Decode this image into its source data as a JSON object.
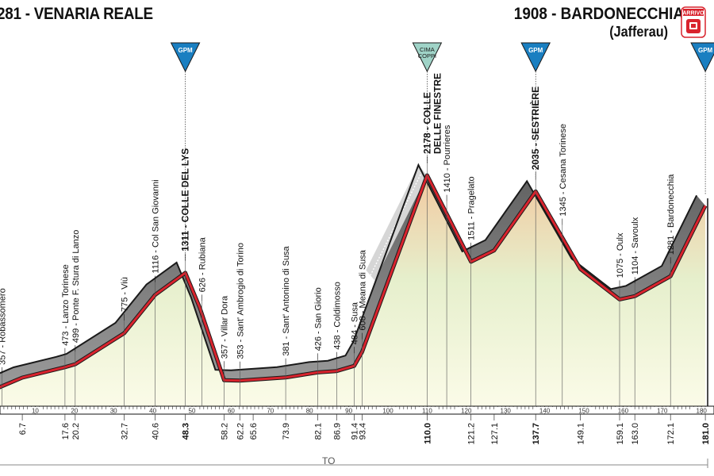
{
  "header": {
    "start_title": "281 - VENARIA REALE",
    "finish_title": "1908 - BARDONECCHIA",
    "finish_subtitle": "(Jafferau)",
    "finish_badge": "ARRIVO"
  },
  "province_label": "TO",
  "chart_data": {
    "type": "area",
    "title": "",
    "xlabel": "",
    "ylabel": "",
    "xlim": [
      0,
      181
    ],
    "ylim": [
      0,
      2400
    ],
    "x_ticks": [
      10,
      20,
      30,
      40,
      50,
      60,
      70,
      80,
      90,
      100,
      110,
      120,
      130,
      140,
      150,
      160,
      170,
      180
    ],
    "colors": {
      "road": "#d9232d",
      "shadow": "#808080",
      "outline": "#1a1a1a",
      "gpm": "#1a7fc1",
      "cima_coppi": "#9fd3c7"
    },
    "profile": [
      {
        "x": 0,
        "y": 281
      },
      {
        "x": 6.7,
        "y": 380
      },
      {
        "x": 17.6,
        "y": 473
      },
      {
        "x": 20.2,
        "y": 499
      },
      {
        "x": 32.7,
        "y": 775
      },
      {
        "x": 40.6,
        "y": 1116
      },
      {
        "x": 48.3,
        "y": 1311
      },
      {
        "x": 52,
        "y": 1000
      },
      {
        "x": 58.2,
        "y": 357
      },
      {
        "x": 62.2,
        "y": 353
      },
      {
        "x": 73.9,
        "y": 381
      },
      {
        "x": 82.1,
        "y": 426
      },
      {
        "x": 86.9,
        "y": 438
      },
      {
        "x": 91.4,
        "y": 484
      },
      {
        "x": 93.4,
        "y": 608
      },
      {
        "x": 110.0,
        "y": 2178
      },
      {
        "x": 121.2,
        "y": 1410
      },
      {
        "x": 127.1,
        "y": 1511
      },
      {
        "x": 137.7,
        "y": 2035
      },
      {
        "x": 149.1,
        "y": 1345
      },
      {
        "x": 159.1,
        "y": 1075
      },
      {
        "x": 163.0,
        "y": 1104
      },
      {
        "x": 172.1,
        "y": 1281
      },
      {
        "x": 181.0,
        "y": 1908
      }
    ],
    "bottom_km_labels": [
      {
        "km": 6.7,
        "label": "6.7",
        "bold": false
      },
      {
        "km": 17.6,
        "label": "17.6",
        "bold": false
      },
      {
        "km": 20.2,
        "label": "20.2",
        "bold": false
      },
      {
        "km": 32.7,
        "label": "32.7",
        "bold": false
      },
      {
        "km": 40.6,
        "label": "40.6",
        "bold": false
      },
      {
        "km": 48.3,
        "label": "48.3",
        "bold": true
      },
      {
        "km": 58.2,
        "label": "58.2",
        "bold": false
      },
      {
        "km": 62.2,
        "label": "62.2",
        "bold": false
      },
      {
        "km": 65.6,
        "label": "65.6",
        "bold": false
      },
      {
        "km": 73.9,
        "label": "73.9",
        "bold": false
      },
      {
        "km": 82.1,
        "label": "82.1",
        "bold": false
      },
      {
        "km": 86.9,
        "label": "86.9",
        "bold": false
      },
      {
        "km": 91.4,
        "label": "91.4",
        "bold": false
      },
      {
        "km": 93.4,
        "label": "93.4",
        "bold": false
      },
      {
        "km": 110.0,
        "label": "110.0",
        "bold": true
      },
      {
        "km": 121.2,
        "label": "121.2",
        "bold": false
      },
      {
        "km": 127.1,
        "label": "127.1",
        "bold": false
      },
      {
        "km": 137.7,
        "label": "137.7",
        "bold": true
      },
      {
        "km": 149.1,
        "label": "149.1",
        "bold": false
      },
      {
        "km": 159.1,
        "label": "159.1",
        "bold": false
      },
      {
        "km": 163.0,
        "label": "163.0",
        "bold": false
      },
      {
        "km": 172.1,
        "label": "172.1",
        "bold": false
      },
      {
        "km": 181.0,
        "label": "181.0",
        "bold": true
      }
    ],
    "places": [
      {
        "km": 1.5,
        "label": "357 - Robassomero",
        "bold": false
      },
      {
        "km": 17.6,
        "label": "473 - Lanzo Torinese",
        "bold": false
      },
      {
        "km": 20.2,
        "label": "499 - Ponte F. Stura di Lanzo",
        "bold": false
      },
      {
        "km": 32.7,
        "label": "775 - Viù",
        "bold": false
      },
      {
        "km": 40.6,
        "label": "1116 - Col San Giovanni",
        "bold": false
      },
      {
        "km": 48.3,
        "label": "1311 - COLLE DEL LYS",
        "bold": true
      },
      {
        "km": 52.5,
        "label": "626 - Rubiana",
        "bold": false
      },
      {
        "km": 58.2,
        "label": "357 - Villar Dora",
        "bold": false
      },
      {
        "km": 62.2,
        "label": "353 - Sant' Ambrogio di Torino",
        "bold": false
      },
      {
        "km": 73.9,
        "label": "381 - Sant' Antonino di Susa",
        "bold": false
      },
      {
        "km": 82.1,
        "label": "426 - San Giorio",
        "bold": false
      },
      {
        "km": 86.9,
        "label": "438 - Coldimosso",
        "bold": false
      },
      {
        "km": 91.4,
        "label": "484 - Susa",
        "bold": false
      },
      {
        "km": 93.4,
        "label": "608 - Meana di Susa",
        "bold": false
      },
      {
        "km": 110.0,
        "label": "2178 - COLLE",
        "label2": "DELLE FINESTRE",
        "bold": true
      },
      {
        "km": 115.0,
        "label": "1410 - Pourrieres",
        "bold": false
      },
      {
        "km": 121.2,
        "label": "1511 - Pragelato",
        "bold": false
      },
      {
        "km": 137.7,
        "label": "2035 - SESTRIÈRE",
        "bold": true
      },
      {
        "km": 144.5,
        "label": "1345 - Cesana Torinese",
        "bold": false
      },
      {
        "km": 159.1,
        "label": "1075 - Oulx",
        "bold": false
      },
      {
        "km": 163.0,
        "label": "1104 - Savoulx",
        "bold": false
      },
      {
        "km": 172.1,
        "label": "1281 - Bardonecchia",
        "bold": false
      }
    ],
    "gpm_markers": [
      {
        "km": 48.3,
        "label": "GPM"
      },
      {
        "km": 110.0,
        "label": "CIMA",
        "label2": "COPPI",
        "cima_coppi": true
      },
      {
        "km": 137.7,
        "label": "GPM"
      },
      {
        "km": 181.0,
        "label": "GPM"
      }
    ]
  }
}
